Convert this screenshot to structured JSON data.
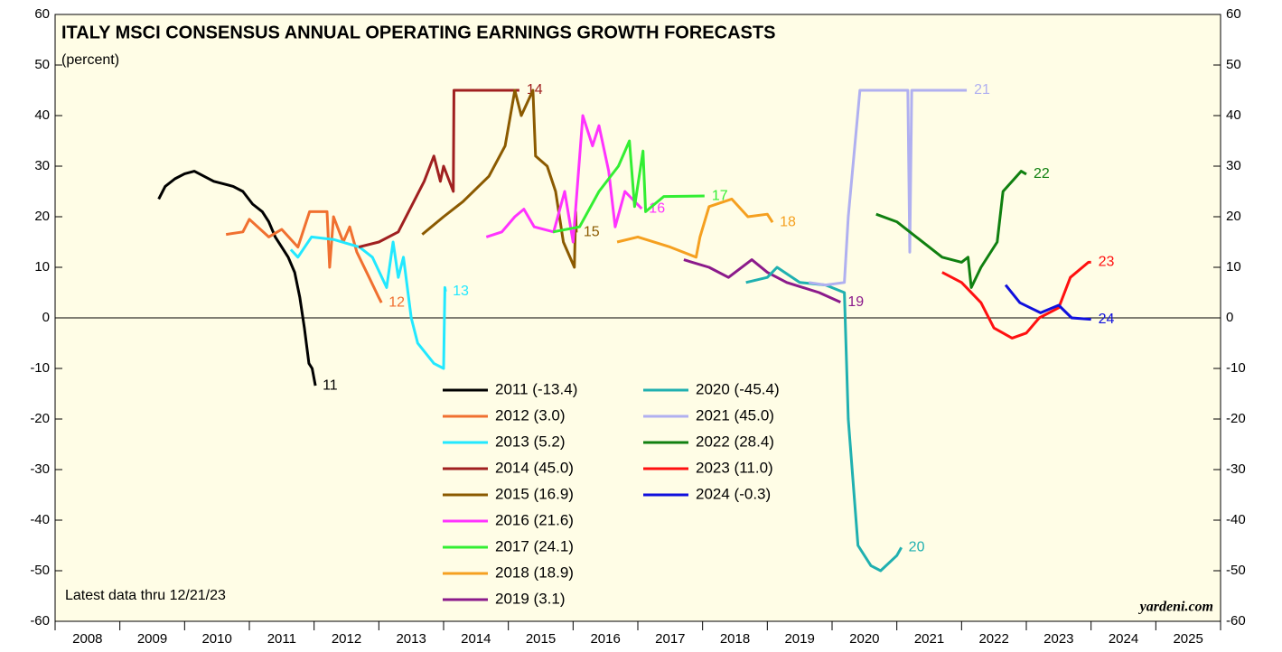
{
  "chart_data": {
    "type": "line",
    "title": "ITALY MSCI CONSENSUS ANNUAL OPERATING EARNINGS GROWTH FORECASTS",
    "subtitle": "(percent)",
    "note": "Latest data thru  12/21/23",
    "source": "yardeni.com",
    "categories": [
      "2008",
      "2009",
      "2010",
      "2011",
      "2012",
      "2013",
      "2014",
      "2015",
      "2016",
      "2017",
      "2018",
      "2019",
      "2020",
      "2021",
      "2022",
      "2023",
      "2024",
      "2025"
    ],
    "xlim": [
      2008,
      2026
    ],
    "ylim": [
      -60,
      60
    ],
    "yticks": [
      -60,
      -50,
      -40,
      -30,
      -20,
      -10,
      0,
      10,
      20,
      30,
      40,
      50,
      60
    ],
    "series": [
      {
        "name": "2011 (-13.4)",
        "end_label": "11",
        "color": "#000000",
        "x": [
          2009.6,
          2009.7,
          2009.85,
          2010.0,
          2010.15,
          2010.3,
          2010.45,
          2010.6,
          2010.75,
          2010.9,
          2011.05,
          2011.2,
          2011.3,
          2011.4,
          2011.5,
          2011.6,
          2011.7,
          2011.78,
          2011.85,
          2011.92,
          2011.97,
          2012.02
        ],
        "values": [
          23.5,
          26,
          27.5,
          28.5,
          29,
          28,
          27,
          26.5,
          26,
          25,
          22.5,
          21,
          19,
          16,
          14,
          12,
          9,
          4,
          -2,
          -9,
          -10,
          -13.4
        ]
      },
      {
        "name": "2012 (3.0)",
        "end_label": "12",
        "color": "#f07030",
        "x": [
          2010.64,
          2010.9,
          2011.0,
          2011.3,
          2011.5,
          2011.75,
          2011.93,
          2012.2,
          2012.24,
          2012.3,
          2012.45,
          2012.55,
          2012.66,
          2012.85,
          2013.0,
          2013.04
        ],
        "values": [
          16.5,
          17,
          19.5,
          16,
          17.5,
          14,
          21,
          21,
          10,
          20,
          15,
          18,
          13,
          8,
          4,
          3.0
        ]
      },
      {
        "name": "2013 (5.2)",
        "end_label": "13",
        "color": "#22e8ff",
        "x": [
          2011.64,
          2011.75,
          2011.96,
          2012.3,
          2012.7,
          2012.9,
          2013.12,
          2013.22,
          2013.3,
          2013.38,
          2013.5,
          2013.6,
          2013.85,
          2014.0,
          2014.02,
          2014.03
        ],
        "values": [
          13.5,
          12,
          16,
          15.5,
          14,
          12,
          6,
          15,
          8,
          12,
          0,
          -5,
          -9,
          -10,
          6,
          5.2
        ]
      },
      {
        "name": "2014 (45.0)",
        "end_label": "14",
        "color": "#a02020",
        "x": [
          2012.69,
          2013.0,
          2013.3,
          2013.7,
          2013.85,
          2013.95,
          2014.0,
          2014.15,
          2014.16,
          2015.17
        ],
        "values": [
          14,
          15,
          17,
          27,
          32,
          27,
          30,
          25,
          45,
          45.0
        ]
      },
      {
        "name": "2015 (16.9)",
        "end_label": "15",
        "color": "#8b5a00",
        "x": [
          2013.67,
          2014.0,
          2014.3,
          2014.7,
          2014.95,
          2015.1,
          2015.2,
          2015.38,
          2015.42,
          2015.6,
          2015.73,
          2015.85,
          2016.02,
          2016.04,
          2016.05
        ],
        "values": [
          16.5,
          20,
          23,
          28,
          34,
          45,
          40,
          45,
          32,
          30,
          25,
          15,
          10,
          21,
          16.9
        ]
      },
      {
        "name": "2016 (21.6)",
        "end_label": "16",
        "color": "#ff33ff",
        "x": [
          2014.66,
          2014.9,
          2015.1,
          2015.24,
          2015.4,
          2015.7,
          2015.87,
          2016.0,
          2016.15,
          2016.3,
          2016.4,
          2016.55,
          2016.65,
          2016.8,
          2017.06
        ],
        "values": [
          16,
          17,
          20,
          21.5,
          18,
          17,
          25,
          15,
          40,
          34,
          38,
          29,
          18,
          25,
          21.6
        ]
      },
      {
        "name": "2017 (24.1)",
        "end_label": "17",
        "color": "#33ee33",
        "x": [
          2015.69,
          2016.1,
          2016.4,
          2016.7,
          2016.87,
          2016.95,
          2017.08,
          2017.12,
          2017.4,
          2018.03
        ],
        "values": [
          17,
          18,
          25,
          30,
          35,
          22,
          33,
          21,
          24,
          24.1
        ]
      },
      {
        "name": "2018 (18.9)",
        "end_label": "18",
        "color": "#f5a020",
        "x": [
          2016.68,
          2017.0,
          2017.5,
          2017.9,
          2017.96,
          2018.1,
          2018.45,
          2018.7,
          2019.0,
          2019.08
        ],
        "values": [
          15,
          16,
          14,
          12,
          16,
          22,
          23.5,
          20,
          20.5,
          18.9
        ]
      },
      {
        "name": "2019 (3.1)",
        "end_label": "19",
        "color": "#8b1a8b",
        "x": [
          2017.71,
          2018.1,
          2018.4,
          2018.76,
          2019.0,
          2019.3,
          2019.8,
          2020.13
        ],
        "values": [
          11.5,
          10,
          8,
          11.5,
          9,
          7,
          5,
          3.1
        ]
      },
      {
        "name": "2020 (-45.4)",
        "end_label": "20",
        "color": "#20b0b0",
        "x": [
          2018.67,
          2019.0,
          2019.15,
          2019.5,
          2019.9,
          2020.19,
          2020.25,
          2020.4,
          2020.6,
          2020.75,
          2021.0,
          2021.07
        ],
        "values": [
          7,
          8,
          10,
          7,
          6.5,
          5,
          -20,
          -45,
          -49,
          -50,
          -47,
          -45.4
        ]
      },
      {
        "name": "2021 (45.0)",
        "end_label": "21",
        "color": "#b0b0f0",
        "x": [
          2019.64,
          2019.9,
          2020.19,
          2020.25,
          2020.43,
          2021.17,
          2021.2,
          2021.23,
          2022.08
        ],
        "values": [
          7,
          6.5,
          7,
          20,
          45,
          45,
          13,
          45,
          45.0
        ]
      },
      {
        "name": "2022 (28.4)",
        "end_label": "22",
        "color": "#108010",
        "x": [
          2020.68,
          2021.0,
          2021.3,
          2021.7,
          2022.0,
          2022.1,
          2022.15,
          2022.3,
          2022.55,
          2022.64,
          2022.92,
          2023.0
        ],
        "values": [
          20.5,
          19,
          16,
          12,
          11,
          12,
          6,
          10,
          15,
          25,
          29,
          28.4
        ]
      },
      {
        "name": "2023 (11.0)",
        "end_label": "23",
        "color": "#ff1010",
        "x": [
          2021.7,
          2022.0,
          2022.3,
          2022.5,
          2022.78,
          2023.0,
          2023.2,
          2023.5,
          2023.68,
          2023.96,
          2024.0
        ],
        "values": [
          9,
          7,
          3,
          -2,
          -4,
          -3,
          0,
          2,
          8,
          11,
          11.0
        ]
      },
      {
        "name": "2024 (-0.3)",
        "end_label": "24",
        "color": "#1010dd",
        "x": [
          2022.68,
          2022.9,
          2023.22,
          2023.5,
          2023.7,
          2024.0
        ],
        "values": [
          6.5,
          3,
          1,
          2.5,
          0,
          -0.3
        ]
      }
    ]
  }
}
